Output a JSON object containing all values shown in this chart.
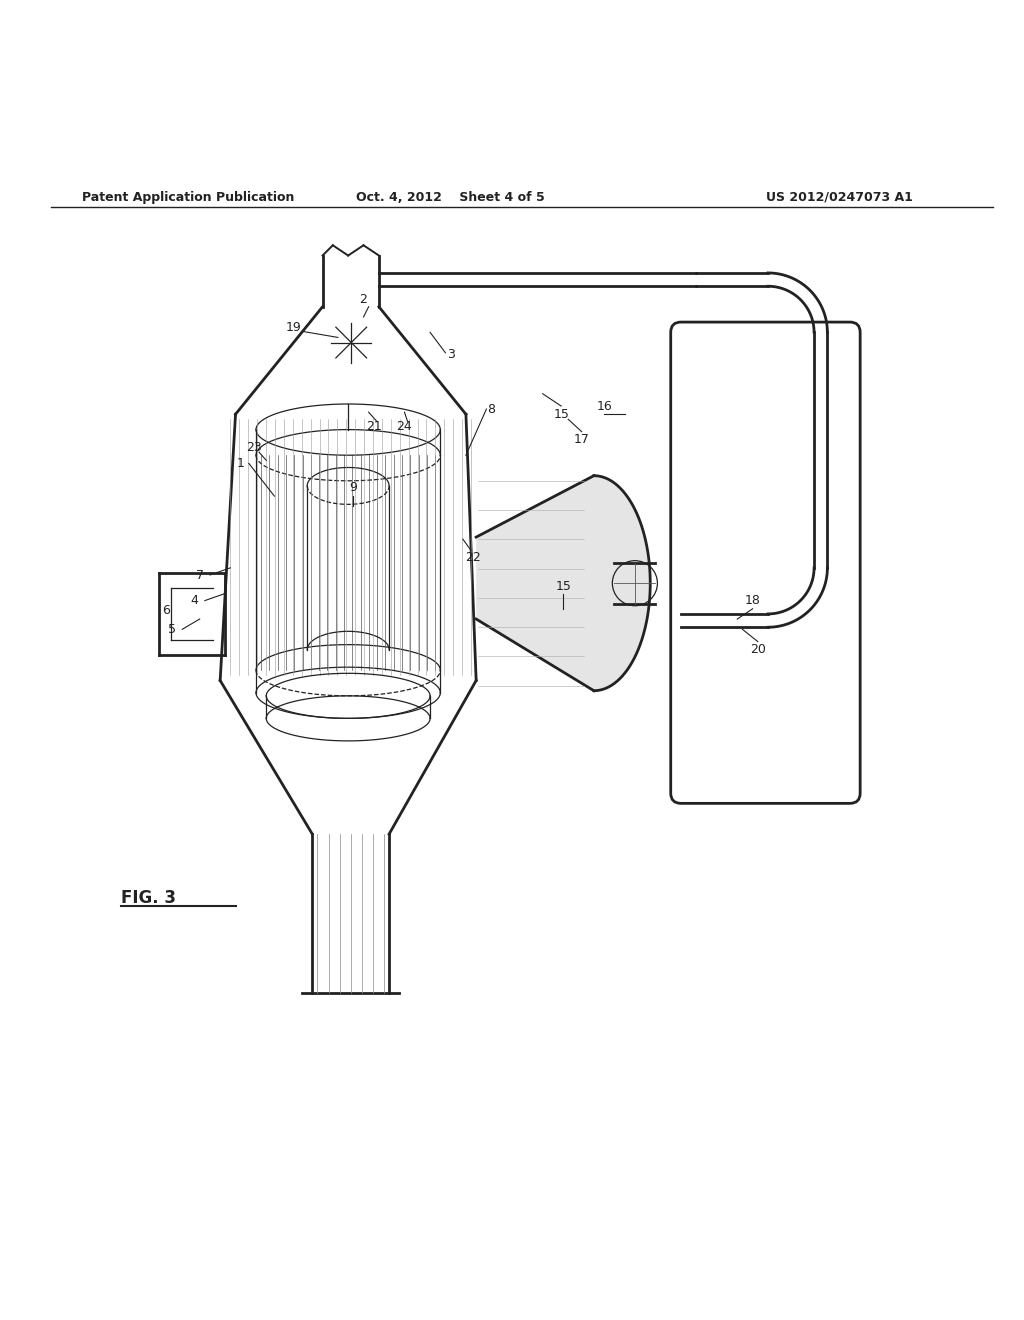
{
  "background_color": "#ffffff",
  "header_left": "Patent Application Publication",
  "header_center": "Oct. 4, 2012    Sheet 4 of 5",
  "header_right": "US 2012/0247073 A1",
  "figure_label": "FIG. 3",
  "dark": "#222222",
  "gray": "#555555",
  "mid": "#888888",
  "lw_thick": 2.0,
  "lw_main": 1.4,
  "lw_thin": 0.9
}
